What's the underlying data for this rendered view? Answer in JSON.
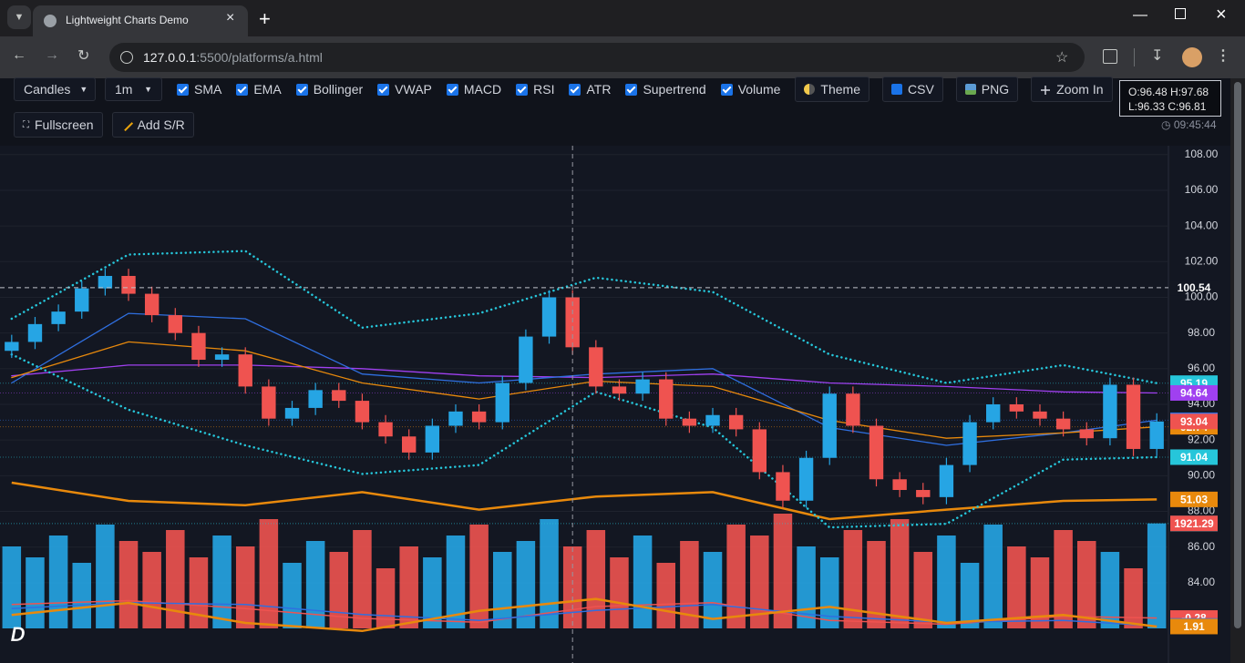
{
  "browser": {
    "tab_title": "Lightweight Charts Demo",
    "url_host": "127.0.0.1",
    "url_rest": ":5500/platforms/a.html"
  },
  "toolbar": {
    "chart_type": "Candles",
    "interval": "1m",
    "toggles": [
      "SMA",
      "EMA",
      "Bollinger",
      "VWAP",
      "MACD",
      "RSI",
      "ATR",
      "Supertrend",
      "Volume"
    ],
    "buttons": [
      "Theme",
      "CSV",
      "PNG",
      "Zoom In"
    ],
    "row2": [
      "Fullscreen",
      "Add S/R"
    ]
  },
  "readout": {
    "lines": [
      "O:96.48 H:97.68",
      "L:96.33 C:96.81"
    ],
    "time": "09:45:44"
  },
  "chart_data": {
    "type": "candlestick",
    "ylim": [
      79.5,
      108.5
    ],
    "yticks": [
      {
        "value": 84,
        "label": "84.00"
      },
      {
        "value": 86,
        "label": "86.00"
      },
      {
        "value": 88,
        "label": "88.00"
      },
      {
        "value": 90,
        "label": "90.00"
      },
      {
        "value": 92,
        "label": "92.00"
      },
      {
        "value": 94,
        "label": "94.00"
      },
      {
        "value": 96,
        "label": "96.00"
      },
      {
        "value": 98,
        "label": "98.00"
      },
      {
        "value": 100,
        "label": "100.00"
      },
      {
        "value": 102,
        "label": "102.00"
      },
      {
        "value": 104,
        "label": "104.00"
      },
      {
        "value": 106,
        "label": "106.00"
      },
      {
        "value": 108,
        "label": "108.00"
      }
    ],
    "grid": true,
    "up_color": "#26a5e4",
    "down_color": "#ef5350",
    "open": [
      97.0,
      97.5,
      98.5,
      99.2,
      100.5,
      101.2,
      100.2,
      99.0,
      98.0,
      96.5,
      96.8,
      95.0,
      93.2,
      93.8,
      94.8,
      94.2,
      93.0,
      92.2,
      91.3,
      92.8,
      93.6,
      93.0,
      95.2,
      97.8,
      100.0,
      97.2,
      95.0,
      94.6,
      95.4,
      93.2,
      92.8,
      93.4,
      92.6,
      90.2,
      88.6,
      91.0,
      94.6,
      92.8,
      89.8,
      89.2,
      88.8,
      90.6,
      93.0,
      94.0,
      93.6,
      93.2,
      92.6,
      92.1,
      95.1,
      91.5
    ],
    "high": [
      97.9,
      98.9,
      99.6,
      100.9,
      101.6,
      101.6,
      100.6,
      99.4,
      98.4,
      97.2,
      97.2,
      95.4,
      94.2,
      95.2,
      95.2,
      94.6,
      93.4,
      92.6,
      93.2,
      94.0,
      94.0,
      95.6,
      98.2,
      100.4,
      100.4,
      97.6,
      95.4,
      95.8,
      95.8,
      93.6,
      93.8,
      93.8,
      93.0,
      90.6,
      91.4,
      95.0,
      95.0,
      93.2,
      90.2,
      89.6,
      91.0,
      93.4,
      94.4,
      94.4,
      94.0,
      93.6,
      93.0,
      95.5,
      95.5,
      93.5
    ],
    "low": [
      96.6,
      97.1,
      98.1,
      98.8,
      100.1,
      99.8,
      98.6,
      97.6,
      96.1,
      96.1,
      94.6,
      92.8,
      92.8,
      93.4,
      93.8,
      92.6,
      91.8,
      90.9,
      90.9,
      92.4,
      92.6,
      92.6,
      94.8,
      97.4,
      96.8,
      94.6,
      94.2,
      94.2,
      92.8,
      92.4,
      92.4,
      92.2,
      89.8,
      88.2,
      88.2,
      90.6,
      92.4,
      89.4,
      88.8,
      88.4,
      88.4,
      90.2,
      92.6,
      93.2,
      92.8,
      92.2,
      91.7,
      91.7,
      91.1,
      91.1
    ],
    "close": [
      97.5,
      98.5,
      99.2,
      100.5,
      101.2,
      100.2,
      99.0,
      98.0,
      96.5,
      96.8,
      95.0,
      93.2,
      93.8,
      94.8,
      94.2,
      93.0,
      92.2,
      91.3,
      92.8,
      93.6,
      93.0,
      95.2,
      97.8,
      100.0,
      97.2,
      95.0,
      94.6,
      95.4,
      93.2,
      92.8,
      93.4,
      92.6,
      90.2,
      88.6,
      91.0,
      94.6,
      92.8,
      89.8,
      89.2,
      88.8,
      90.6,
      93.0,
      94.0,
      93.6,
      93.2,
      92.6,
      92.1,
      95.1,
      91.5,
      93.04
    ],
    "volume": {
      "lim": [
        0,
        2500
      ],
      "values": [
        1500,
        1300,
        1700,
        1200,
        1900,
        1600,
        1400,
        1800,
        1300,
        1700,
        1500,
        2000,
        1200,
        1600,
        1400,
        1800,
        1100,
        1500,
        1300,
        1700,
        1900,
        1400,
        1600,
        2000,
        1500,
        1800,
        1300,
        1700,
        1200,
        1600,
        1400,
        1900,
        1700,
        2100,
        1500,
        1300,
        1800,
        1600,
        2000,
        1400,
        1700,
        1200,
        1900,
        1500,
        1300,
        1800,
        1600,
        1400,
        1100,
        1921.29
      ]
    },
    "overlays": [
      {
        "color": "#26c6da",
        "style": "dotted",
        "x": [
          0,
          5,
          10,
          15,
          20,
          25,
          30,
          35,
          40,
          45,
          49
        ],
        "values": [
          98.8,
          102.4,
          102.6,
          98.3,
          99.1,
          101.1,
          100.3,
          96.8,
          95.2,
          96.2,
          95.19
        ]
      },
      {
        "color": "#a040f0",
        "style": "solid",
        "x": [
          0,
          5,
          10,
          15,
          20,
          25,
          30,
          35,
          40,
          45,
          49
        ],
        "values": [
          95.6,
          96.2,
          96.2,
          96.0,
          95.6,
          95.5,
          95.7,
          95.2,
          95.0,
          94.7,
          94.64
        ]
      },
      {
        "color": "#2f6fe0",
        "style": "solid",
        "x": [
          0,
          5,
          10,
          15,
          20,
          25,
          30,
          35,
          40,
          45,
          49
        ],
        "values": [
          95.2,
          99.1,
          98.8,
          95.7,
          95.2,
          95.7,
          96.0,
          92.7,
          91.7,
          92.4,
          93.11
        ]
      },
      {
        "color": "#e8890c",
        "style": "solid",
        "x": [
          0,
          5,
          10,
          15,
          20,
          25,
          30,
          35,
          40,
          45,
          49
        ],
        "values": [
          95.5,
          97.5,
          97.0,
          95.2,
          94.3,
          95.3,
          95.0,
          93.1,
          92.1,
          92.4,
          92.74
        ]
      },
      {
        "color": "#26c6da",
        "style": "dotted",
        "x": [
          0,
          5,
          10,
          15,
          20,
          25,
          30,
          35,
          40,
          45,
          49
        ],
        "values": [
          96.8,
          93.7,
          91.7,
          90.1,
          90.6,
          94.7,
          92.7,
          87.1,
          87.3,
          90.9,
          91.04
        ]
      }
    ],
    "price_lines": [
      {
        "value": 87.32,
        "color": "#26c6da"
      }
    ],
    "indicators": {
      "rsi": {
        "color": "#e8890c",
        "lim": [
          0,
          100
        ],
        "x": [
          0,
          5,
          10,
          15,
          20,
          25,
          30,
          35,
          40,
          45,
          49
        ],
        "values": [
          62.5,
          50,
          47,
          56,
          44,
          53,
          56,
          37.5,
          44,
          50,
          51.03
        ]
      },
      "macd": {
        "color": "#ef5350",
        "lim": [
          -1.5,
          1.5
        ],
        "x": [
          0,
          5,
          10,
          15,
          20,
          25,
          30,
          35,
          40,
          45,
          49
        ],
        "values": [
          0.4,
          0.6,
          0.2,
          -0.3,
          -0.5,
          0.3,
          0.5,
          -0.4,
          -0.6,
          -0.2,
          -0.28
        ]
      },
      "signal": {
        "color": "#2f6fe0",
        "lim": [
          -1.5,
          1.5
        ],
        "x": [
          0,
          5,
          10,
          15,
          20,
          25,
          30,
          35,
          40,
          45,
          49
        ],
        "values": [
          0.2,
          0.5,
          0.4,
          -0.1,
          -0.4,
          0.1,
          0.4,
          -0.2,
          -0.5,
          -0.4,
          -0.68
        ]
      },
      "atr": {
        "color": "#e8890c",
        "lim": [
          1,
          3
        ],
        "x": [
          0,
          5,
          10,
          15,
          20,
          25,
          30,
          35,
          40,
          45,
          49
        ],
        "values": [
          2.2,
          2.5,
          2.0,
          1.8,
          2.3,
          2.6,
          2.1,
          2.4,
          2.0,
          2.2,
          1.91
        ]
      }
    },
    "crosshair": {
      "index": 24,
      "price": 100.54
    }
  }
}
